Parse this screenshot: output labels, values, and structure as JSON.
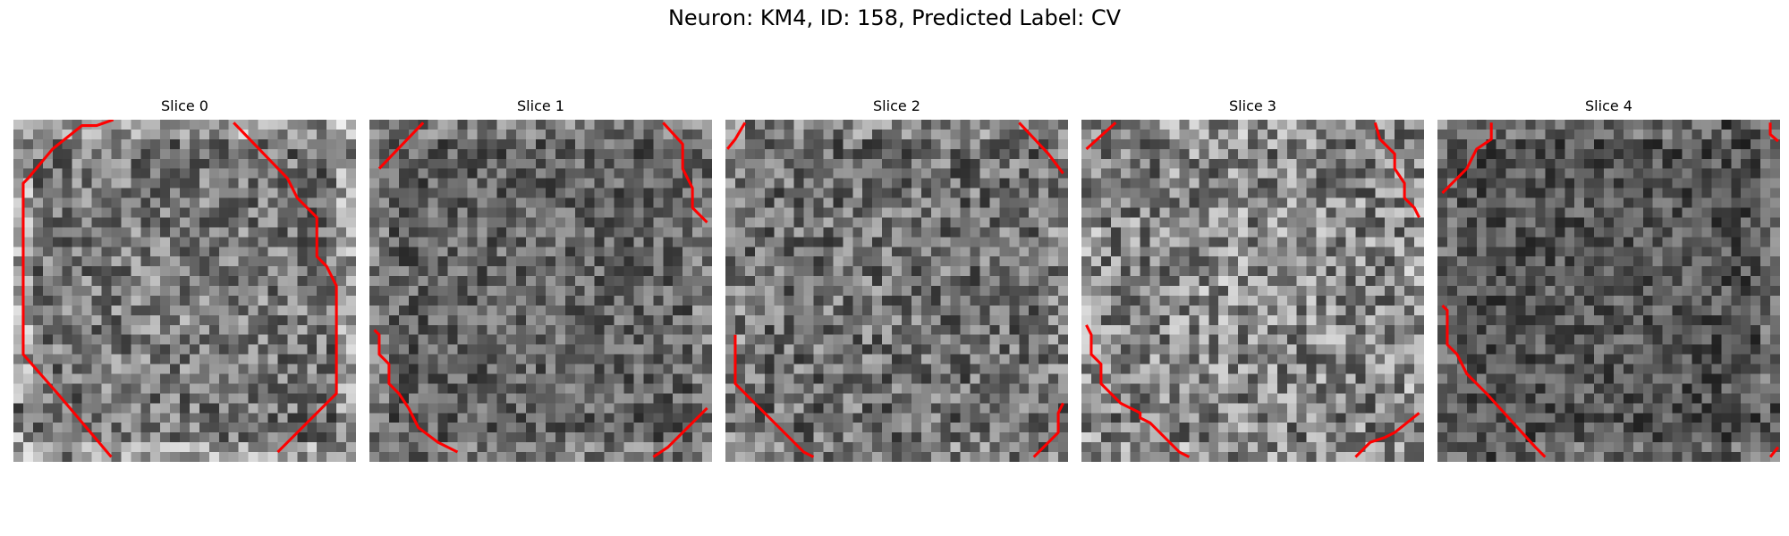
{
  "figure": {
    "title": "Neuron: KM4, ID: 158, Predicted Label: CV"
  },
  "colors": {
    "contour": "#ff0000",
    "background": "#ffffff"
  },
  "image_grid": {
    "cols": 35,
    "rows": 35,
    "colormap": "gray"
  },
  "slices": [
    {
      "title": "Slice 0",
      "base": 0.42,
      "center": 0.1,
      "edge": 0.3,
      "noise": 0.26,
      "seed": 11
    },
    {
      "title": "Slice 1",
      "base": 0.36,
      "center": 0.06,
      "edge": 0.18,
      "noise": 0.22,
      "seed": 23
    },
    {
      "title": "Slice 2",
      "base": 0.42,
      "center": 0.04,
      "edge": 0.12,
      "noise": 0.26,
      "seed": 37
    },
    {
      "title": "Slice 3",
      "base": 0.48,
      "center": 0.1,
      "edge": 0.1,
      "noise": 0.3,
      "seed": 51
    },
    {
      "title": "Slice 4",
      "base": 0.3,
      "center": 0.06,
      "edge": 0.18,
      "noise": 0.2,
      "seed": 67
    }
  ]
}
